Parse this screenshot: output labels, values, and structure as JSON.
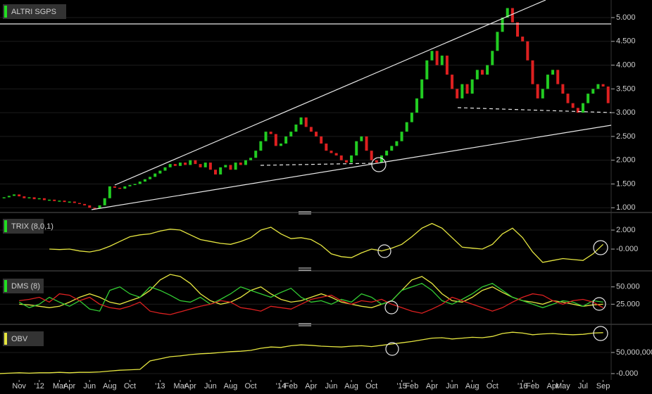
{
  "chart_data": [
    {
      "type": "candlestick",
      "title": "ALTRI SGPS",
      "title_color": "#22dd22",
      "up_color": "#22cc22",
      "down_color": "#dd2020",
      "grid": true,
      "xlim": [
        -1.9,
        58.8
      ],
      "ylim": [
        0.93,
        5.37
      ],
      "yticks": [
        {
          "value": 1,
          "label": "1.000"
        },
        {
          "value": 1.5,
          "label": "1.500"
        },
        {
          "value": 2,
          "label": "2.000"
        },
        {
          "value": 2.5,
          "label": "2.500"
        },
        {
          "value": 3,
          "label": "3.000"
        },
        {
          "value": 3.5,
          "label": "3.500"
        },
        {
          "value": 4,
          "label": "4.000"
        },
        {
          "value": 4.5,
          "label": "4.500"
        },
        {
          "value": 5,
          "label": "5.000"
        }
      ],
      "x": [
        -1.5,
        -1,
        -0.5,
        0,
        0.5,
        1,
        1.5,
        2,
        2.5,
        3,
        3.5,
        4,
        4.5,
        5,
        5.5,
        6,
        6.5,
        7,
        7.5,
        8,
        8.5,
        9,
        9.5,
        10,
        10.5,
        11,
        11.5,
        12,
        12.5,
        13,
        13.5,
        14,
        14.5,
        15,
        15.5,
        16,
        16.5,
        17,
        17.5,
        18,
        18.5,
        19,
        19.5,
        20,
        20.5,
        21,
        21.5,
        22,
        22.5,
        23,
        23.5,
        24,
        24.5,
        25,
        25.5,
        26,
        26.5,
        27,
        27.5,
        28,
        28.5,
        29,
        29.5,
        30,
        30.5,
        31,
        31.5,
        32,
        32.5,
        33,
        33.5,
        34,
        34.5,
        35,
        35.5,
        36,
        36.5,
        37,
        37.5,
        38,
        38.5,
        39,
        39.5,
        40,
        40.5,
        41,
        41.5,
        42,
        42.5,
        43,
        43.5,
        44,
        44.5,
        45,
        45.5,
        46,
        46.5,
        47,
        47.5,
        48,
        48.5,
        49,
        49.5,
        50,
        50.5,
        51,
        51.5,
        52,
        52.5,
        53,
        53.5,
        54,
        54.5,
        55,
        55.5,
        56,
        56.5,
        57,
        57.5,
        58,
        58.5
      ],
      "values": [
        1.22,
        1.25,
        1.28,
        1.24,
        1.2,
        1.22,
        1.18,
        1.2,
        1.16,
        1.17,
        1.14,
        1.15,
        1.12,
        1.13,
        1.1,
        1.08,
        1.05,
        1.0,
        0.98,
        1.05,
        1.2,
        1.45,
        1.42,
        1.4,
        1.45,
        1.48,
        1.5,
        1.55,
        1.6,
        1.65,
        1.72,
        1.78,
        1.85,
        1.92,
        1.88,
        1.95,
        1.9,
        2.0,
        1.92,
        1.85,
        1.95,
        1.8,
        1.7,
        1.85,
        1.9,
        1.8,
        1.95,
        1.9,
        2.0,
        2.05,
        2.2,
        2.4,
        2.6,
        2.55,
        2.3,
        2.35,
        2.5,
        2.6,
        2.75,
        2.9,
        2.7,
        2.6,
        2.5,
        2.35,
        2.2,
        2.15,
        2.1,
        2.0,
        1.95,
        2.1,
        2.4,
        2.5,
        2.2,
        2.0,
        1.95,
        2.1,
        2.2,
        2.3,
        2.4,
        2.6,
        2.8,
        3.0,
        3.3,
        3.7,
        4.1,
        4.3,
        4.0,
        4.2,
        3.8,
        3.5,
        3.3,
        3.6,
        3.4,
        3.7,
        3.9,
        3.8,
        4.0,
        4.3,
        4.7,
        5.0,
        5.2,
        4.9,
        4.6,
        4.5,
        4.1,
        3.6,
        3.3,
        3.5,
        3.8,
        3.9,
        3.6,
        3.4,
        3.2,
        3.1,
        3.0,
        3.2,
        3.4,
        3.5,
        3.6,
        3.55,
        3.2
      ]
    },
    {
      "type": "line",
      "title": "TRIX (8,0,1)",
      "title_color": "#22dd22",
      "color": "#e6e640",
      "grid": true,
      "xlim": [
        -1.9,
        58.8
      ],
      "ylim": [
        -1.7,
        3.63
      ],
      "yticks": [
        {
          "value": 0,
          "label": "-0.000"
        },
        {
          "value": 2,
          "label": "2.000"
        }
      ],
      "x": [
        3,
        4,
        5,
        6,
        7,
        8,
        9,
        10,
        11,
        12,
        13,
        14,
        15,
        16,
        17,
        18,
        19,
        20,
        21,
        22,
        23,
        24,
        25,
        26,
        27,
        28,
        29,
        30,
        31,
        32,
        33,
        34,
        35,
        36,
        37,
        38,
        39,
        40,
        41,
        42,
        43,
        44,
        45,
        46,
        47,
        48,
        49,
        50,
        51,
        52,
        53,
        54,
        55,
        56,
        57,
        58
      ],
      "values": [
        0,
        -0.05,
        0,
        -0.2,
        -0.3,
        -0.1,
        0.3,
        0.8,
        1.3,
        1.5,
        1.6,
        1.9,
        2.1,
        2.0,
        1.5,
        1.0,
        0.8,
        0.6,
        0.5,
        0.8,
        1.2,
        2.0,
        2.3,
        1.6,
        1.1,
        1.2,
        1.0,
        0.4,
        -0.5,
        -0.8,
        -0.9,
        -0.4,
        0,
        -0.2,
        0.1,
        0.5,
        1.3,
        2.2,
        2.7,
        2.2,
        1.2,
        0.2,
        0.1,
        0,
        0.5,
        1.6,
        2.2,
        1.2,
        -0.3,
        -1.4,
        -1.2,
        -1.0,
        -1.1,
        -1.2,
        -0.5,
        0.5
      ]
    },
    {
      "type": "line",
      "title": "DMS (8)",
      "title_color": "#22dd22",
      "grid": true,
      "xlim": [
        -1.9,
        58.8
      ],
      "ylim": [
        0,
        68
      ],
      "yticks": [
        {
          "value": 25,
          "label": "25.000"
        },
        {
          "value": 50,
          "label": "50.000"
        }
      ],
      "x": [
        0,
        1,
        2,
        3,
        4,
        5,
        6,
        7,
        8,
        9,
        10,
        11,
        12,
        13,
        14,
        15,
        16,
        17,
        18,
        19,
        20,
        21,
        22,
        23,
        24,
        25,
        26,
        27,
        28,
        29,
        30,
        31,
        32,
        33,
        34,
        35,
        36,
        37,
        38,
        39,
        40,
        41,
        42,
        43,
        44,
        45,
        46,
        47,
        48,
        49,
        50,
        51,
        52,
        53,
        54,
        55,
        56,
        57,
        58
      ],
      "series": [
        {
          "color": "#e6e640",
          "values": [
            25,
            24,
            22,
            20,
            22,
            28,
            35,
            40,
            35,
            28,
            25,
            30,
            35,
            45,
            60,
            68,
            65,
            55,
            40,
            30,
            25,
            28,
            35,
            45,
            50,
            40,
            32,
            28,
            30,
            35,
            40,
            35,
            28,
            25,
            22,
            20,
            25,
            30,
            45,
            60,
            65,
            55,
            40,
            30,
            28,
            35,
            45,
            50,
            42,
            35,
            30,
            28,
            25,
            30,
            28,
            25,
            22,
            24,
            25
          ]
        },
        {
          "color": "#33cc33",
          "values": [
            28,
            20,
            25,
            35,
            28,
            22,
            30,
            18,
            15,
            45,
            50,
            40,
            35,
            50,
            45,
            38,
            30,
            28,
            35,
            25,
            32,
            40,
            50,
            45,
            40,
            35,
            42,
            48,
            35,
            28,
            30,
            25,
            32,
            28,
            40,
            35,
            25,
            30,
            45,
            50,
            55,
            45,
            30,
            25,
            32,
            40,
            50,
            55,
            45,
            35,
            30,
            25,
            20,
            25,
            30,
            28,
            22,
            30,
            28
          ]
        },
        {
          "color": "#dd2020",
          "values": [
            30,
            32,
            35,
            28,
            40,
            38,
            30,
            35,
            25,
            20,
            18,
            22,
            28,
            15,
            12,
            10,
            14,
            18,
            22,
            25,
            30,
            28,
            20,
            18,
            15,
            22,
            20,
            18,
            25,
            32,
            35,
            38,
            30,
            25,
            30,
            28,
            32,
            25,
            20,
            15,
            12,
            18,
            25,
            35,
            30,
            25,
            20,
            15,
            20,
            28,
            35,
            40,
            38,
            30,
            25,
            30,
            32,
            28,
            20
          ]
        }
      ]
    },
    {
      "type": "line",
      "title": "OBV",
      "title_color": "#e6e640",
      "color": "#e6e640",
      "grid": true,
      "xlim": [
        -1.9,
        58.8
      ],
      "ylim": [
        -15000000,
        110000000
      ],
      "yticks": [
        {
          "value": 0,
          "label": "-0.000"
        },
        {
          "value": 50000000,
          "label": "50,000,000"
        }
      ],
      "xticks": [
        {
          "value": 0,
          "label": "Nov"
        },
        {
          "value": 2,
          "label": "'12"
        },
        {
          "value": 4,
          "label": "Mar"
        },
        {
          "value": 5,
          "label": "Apr"
        },
        {
          "value": 7,
          "label": "Jun"
        },
        {
          "value": 9,
          "label": "Aug"
        },
        {
          "value": 11,
          "label": "Oct"
        },
        {
          "value": 14,
          "label": "'13"
        },
        {
          "value": 16,
          "label": "Mar"
        },
        {
          "value": 17,
          "label": "Apr"
        },
        {
          "value": 19,
          "label": "Jun"
        },
        {
          "value": 21,
          "label": "Aug"
        },
        {
          "value": 23,
          "label": "Oct"
        },
        {
          "value": 26,
          "label": "'14"
        },
        {
          "value": 27,
          "label": "Feb"
        },
        {
          "value": 29,
          "label": "Apr"
        },
        {
          "value": 31,
          "label": "Jun"
        },
        {
          "value": 33,
          "label": "Aug"
        },
        {
          "value": 35,
          "label": "Oct"
        },
        {
          "value": 38,
          "label": "'15"
        },
        {
          "value": 39,
          "label": "Feb"
        },
        {
          "value": 41,
          "label": "Apr"
        },
        {
          "value": 43,
          "label": "Jun"
        },
        {
          "value": 45,
          "label": "Aug"
        },
        {
          "value": 47,
          "label": "Oct"
        },
        {
          "value": 50,
          "label": "'16"
        },
        {
          "value": 51,
          "label": "Feb"
        },
        {
          "value": 53,
          "label": "Apr"
        },
        {
          "value": 54,
          "label": "May"
        },
        {
          "value": 56,
          "label": "Jul"
        },
        {
          "value": 58,
          "label": "Sep"
        }
      ],
      "x": [
        -2,
        -1,
        0,
        1,
        2,
        3,
        4,
        5,
        6,
        7,
        8,
        9,
        10,
        11,
        12,
        13,
        14,
        15,
        16,
        17,
        18,
        19,
        20,
        21,
        22,
        23,
        24,
        25,
        26,
        27,
        28,
        29,
        30,
        31,
        32,
        33,
        34,
        35,
        36,
        37,
        38,
        39,
        40,
        41,
        42,
        43,
        44,
        45,
        46,
        47,
        48,
        49,
        50,
        51,
        52,
        53,
        54,
        55,
        56,
        57,
        58
      ],
      "values": [
        0,
        1000000,
        2000000,
        1000000,
        2000000,
        2000000,
        3000000,
        2000000,
        3000000,
        3000000,
        4000000,
        6000000,
        8000000,
        9000000,
        10000000,
        30000000,
        35000000,
        40000000,
        42000000,
        45000000,
        47000000,
        48000000,
        50000000,
        52000000,
        53000000,
        55000000,
        60000000,
        63000000,
        62000000,
        66000000,
        68000000,
        67000000,
        65000000,
        64000000,
        63000000,
        65000000,
        66000000,
        64000000,
        67000000,
        70000000,
        73000000,
        76000000,
        80000000,
        84000000,
        85000000,
        82000000,
        84000000,
        86000000,
        85000000,
        88000000,
        95000000,
        98000000,
        96000000,
        92000000,
        94000000,
        95000000,
        93000000,
        92000000,
        93000000,
        96000000,
        97000000
      ]
    }
  ]
}
